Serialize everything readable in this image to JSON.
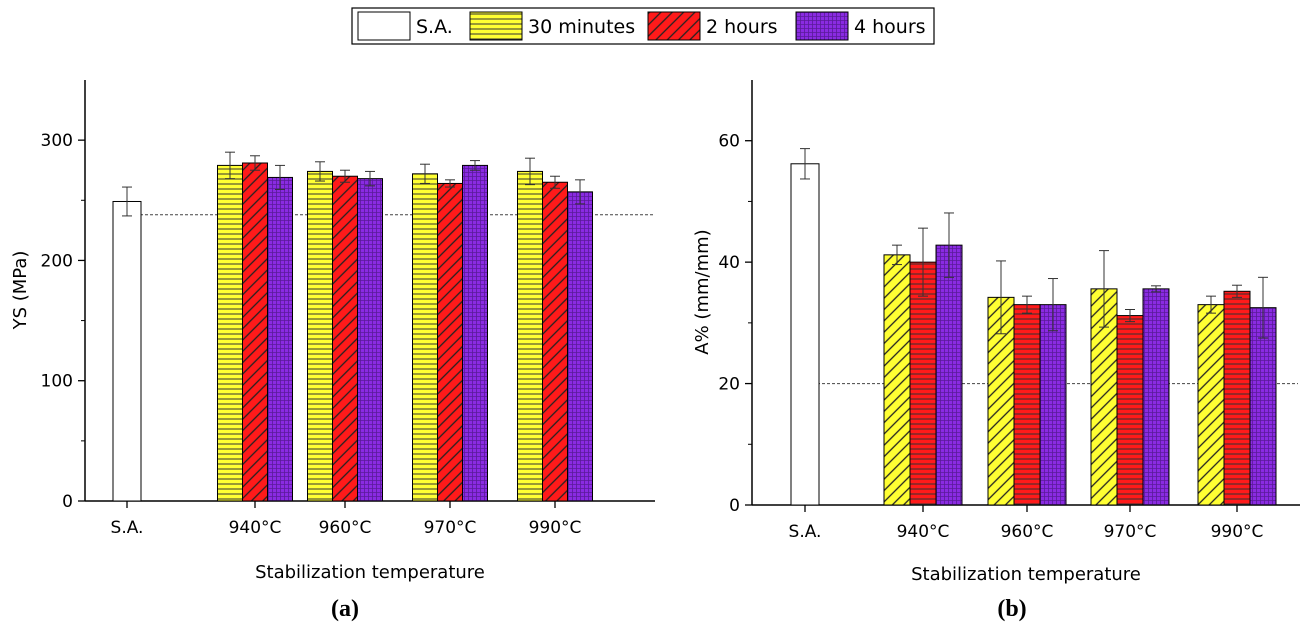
{
  "legend": {
    "items": [
      {
        "label": "S.A.",
        "fill": "#ffffff",
        "pattern": "none"
      },
      {
        "label": "30 minutes",
        "fill": "#ffff33",
        "pattern": "hlines"
      },
      {
        "label": "2 hours",
        "fill": "#ff1a1a",
        "pattern": "diag"
      },
      {
        "label": "4 hours",
        "fill": "#8a2be2",
        "pattern": "grid"
      }
    ]
  },
  "chart_data": [
    {
      "type": "bar",
      "panel_label": "(a)",
      "xlabel": "Stabilization temperature",
      "ylabel": "YS (MPa)",
      "ylim": [
        0,
        350
      ],
      "yticks": [
        0,
        100,
        200,
        300
      ],
      "categories": [
        "S.A.",
        "940°C",
        "960°C",
        "970°C",
        "990°C"
      ],
      "reference_line": 238,
      "series": [
        {
          "name": "S.A.",
          "color": "#ffffff",
          "pattern": "none",
          "values": [
            249,
            null,
            null,
            null,
            null
          ],
          "errors": [
            12,
            null,
            null,
            null,
            null
          ]
        },
        {
          "name": "30 minutes",
          "color": "#ffff33",
          "pattern": "hlines",
          "values": [
            null,
            279,
            274,
            272,
            274
          ],
          "errors": [
            null,
            11,
            8,
            8,
            11
          ]
        },
        {
          "name": "2 hours",
          "color": "#ff1a1a",
          "pattern": "diag",
          "values": [
            null,
            281,
            270,
            264,
            265
          ],
          "errors": [
            null,
            6,
            5,
            3,
            5
          ]
        },
        {
          "name": "4 hours",
          "color": "#8a2be2",
          "pattern": "grid",
          "values": [
            null,
            269,
            268,
            279,
            257
          ],
          "errors": [
            null,
            10,
            6,
            4,
            10
          ]
        }
      ]
    },
    {
      "type": "bar",
      "panel_label": "(b)",
      "xlabel": "Stabilization temperature",
      "ylabel": "A% (mm/mm)",
      "ylim": [
        0,
        70
      ],
      "yticks": [
        0,
        20,
        40,
        60
      ],
      "categories": [
        "S.A.",
        "940°C",
        "960°C",
        "970°C",
        "990°C"
      ],
      "reference_line": 20,
      "series": [
        {
          "name": "S.A.",
          "color": "#ffffff",
          "pattern": "none",
          "values": [
            56.2,
            null,
            null,
            null,
            null
          ],
          "errors": [
            2.5,
            null,
            null,
            null,
            null
          ]
        },
        {
          "name": "30 minutes",
          "color": "#ffff33",
          "pattern": "diag",
          "values": [
            null,
            41.2,
            34.2,
            35.6,
            33.0
          ],
          "errors": [
            null,
            1.6,
            6.0,
            6.3,
            1.4
          ]
        },
        {
          "name": "2 hours",
          "color": "#ff1a1a",
          "pattern": "hlines",
          "values": [
            null,
            40.0,
            33.0,
            31.2,
            35.2
          ],
          "errors": [
            null,
            5.6,
            1.4,
            1.0,
            1.0
          ]
        },
        {
          "name": "4 hours",
          "color": "#8a2be2",
          "pattern": "grid",
          "values": [
            null,
            42.8,
            33.0,
            35.6,
            32.5
          ],
          "errors": [
            null,
            5.3,
            4.3,
            0.5,
            5.0
          ]
        }
      ]
    }
  ]
}
